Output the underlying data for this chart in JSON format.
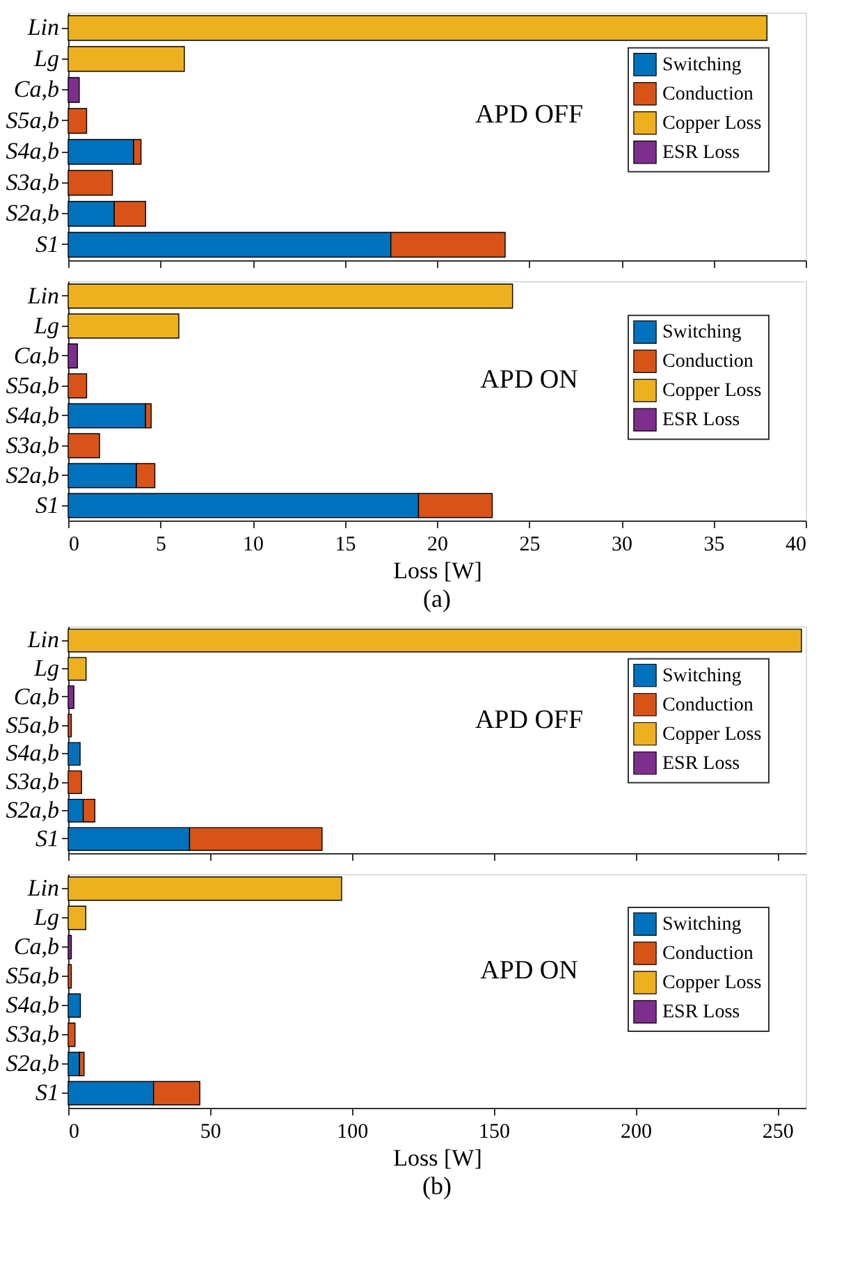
{
  "chart_data": [
    {
      "type": "bar",
      "orientation": "horizontal",
      "stacked": true,
      "categories": [
        "Lin",
        "Lg",
        "Ca,b",
        "S5a,b",
        "S4a,b",
        "S3a,b",
        "S2a,b",
        "S1"
      ],
      "xlim": [
        0,
        40
      ],
      "xticks": [
        0,
        5,
        10,
        15,
        20,
        25,
        30,
        35,
        40
      ],
      "tick_labels": "y",
      "grid": false,
      "legend": "top right",
      "annotations": [
        "APD OFF"
      ],
      "series": [
        {
          "name": "Switching",
          "color": "#0072bd",
          "values": [
            null,
            null,
            null,
            null,
            3.55,
            null,
            2.5,
            17.5
          ]
        },
        {
          "name": "Conduction",
          "color": "#d95319",
          "values": [
            null,
            null,
            null,
            1.0,
            0.4,
            2.4,
            1.7,
            6.2
          ]
        },
        {
          "name": "Copper Loss",
          "color": "#edb120",
          "values": [
            37.9,
            6.3,
            null,
            null,
            null,
            null,
            null,
            null
          ]
        },
        {
          "name": "ESR Loss",
          "color": "#7e2f8e",
          "values": [
            null,
            null,
            0.6,
            null,
            null,
            null,
            null,
            null
          ]
        }
      ]
    },
    {
      "type": "bar",
      "orientation": "horizontal",
      "stacked": true,
      "categories": [
        "Lin",
        "Lg",
        "Ca,b",
        "S5a,b",
        "S4a,b",
        "S3a,b",
        "S2a,b",
        "S1"
      ],
      "xlim": [
        0,
        40
      ],
      "xticks": [
        0,
        5,
        10,
        15,
        20,
        25,
        30,
        35,
        40
      ],
      "xlabel": "Loss [W]",
      "grid": false,
      "legend": "top right",
      "annotations": [
        "APD ON",
        "(a)"
      ],
      "series": [
        {
          "name": "Switching",
          "color": "#0072bd",
          "values": [
            null,
            null,
            null,
            null,
            4.2,
            null,
            3.7,
            19.0
          ]
        },
        {
          "name": "Conduction",
          "color": "#d95319",
          "values": [
            null,
            null,
            null,
            1.0,
            0.3,
            1.7,
            1.0,
            4.0
          ]
        },
        {
          "name": "Copper Loss",
          "color": "#edb120",
          "values": [
            24.1,
            6.0,
            null,
            null,
            null,
            null,
            null,
            null
          ]
        },
        {
          "name": "ESR Loss",
          "color": "#7e2f8e",
          "values": [
            null,
            null,
            0.5,
            null,
            null,
            null,
            null,
            null
          ]
        }
      ]
    },
    {
      "type": "bar",
      "orientation": "horizontal",
      "stacked": true,
      "categories": [
        "Lin",
        "Lg",
        "Ca,b",
        "S5a,b",
        "S4a,b",
        "S3a,b",
        "S2a,b",
        "S1"
      ],
      "xlim": [
        0,
        260
      ],
      "xticks": [
        0,
        50,
        100,
        150,
        200,
        250
      ],
      "tick_labels": "y",
      "grid": false,
      "legend": "top right",
      "annotations": [
        "APD OFF"
      ],
      "series": [
        {
          "name": "Switching",
          "color": "#0072bd",
          "values": [
            null,
            null,
            null,
            null,
            4.2,
            null,
            5.3,
            42.8
          ]
        },
        {
          "name": "Conduction",
          "color": "#d95319",
          "values": [
            null,
            null,
            null,
            1.1,
            null,
            4.7,
            4.1,
            46.7
          ]
        },
        {
          "name": "Copper Loss",
          "color": "#edb120",
          "values": [
            258.5,
            6.3,
            null,
            null,
            null,
            null,
            null,
            null
          ]
        },
        {
          "name": "ESR Loss",
          "color": "#7e2f8e",
          "values": [
            null,
            null,
            2.0,
            null,
            null,
            null,
            null,
            null
          ]
        }
      ]
    },
    {
      "type": "bar",
      "orientation": "horizontal",
      "stacked": true,
      "categories": [
        "Lin",
        "Lg",
        "Ca,b",
        "S5a,b",
        "S4a,b",
        "S3a,b",
        "S2a,b",
        "S1"
      ],
      "xlim": [
        0,
        260
      ],
      "xticks": [
        0,
        50,
        100,
        150,
        200,
        250
      ],
      "xlabel": "Loss [W]",
      "grid": false,
      "legend": "top right",
      "annotations": [
        "APD ON",
        "(b)"
      ],
      "series": [
        {
          "name": "Switching",
          "color": "#0072bd",
          "values": [
            null,
            null,
            null,
            null,
            4.3,
            null,
            4.0,
            30.1
          ]
        },
        {
          "name": "Conduction",
          "color": "#d95319",
          "values": [
            null,
            null,
            null,
            1.1,
            null,
            2.4,
            1.6,
            16.3
          ]
        },
        {
          "name": "Copper Loss",
          "color": "#edb120",
          "values": [
            96.4,
            6.2,
            null,
            null,
            null,
            null,
            null,
            null
          ]
        },
        {
          "name": "ESR Loss",
          "color": "#7e2f8e",
          "values": [
            null,
            null,
            1.1,
            null,
            null,
            null,
            null,
            null
          ]
        }
      ]
    }
  ]
}
